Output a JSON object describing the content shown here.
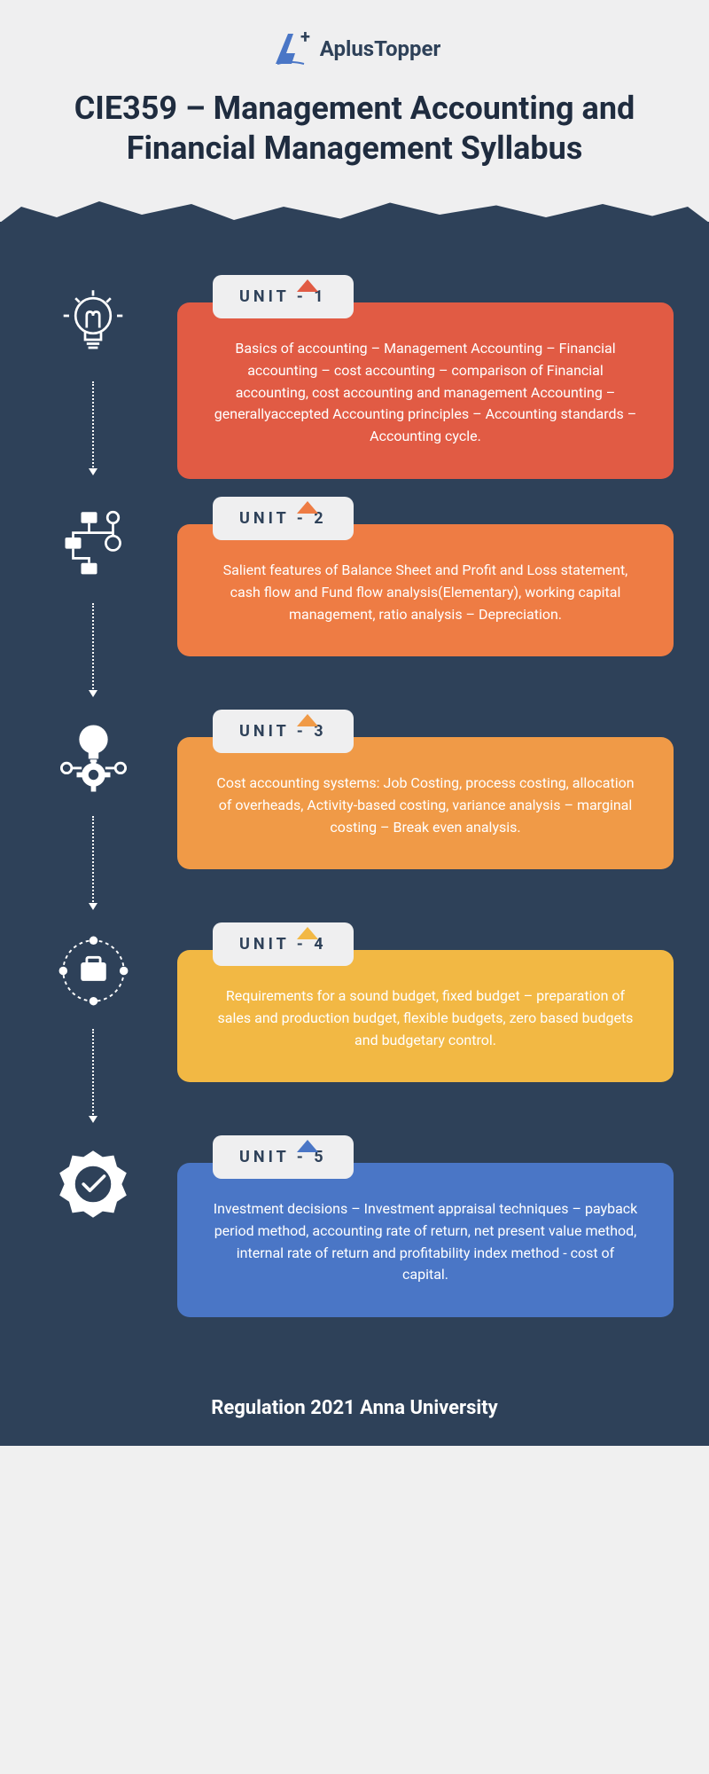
{
  "logo": {
    "text_a": "A",
    "text_plus": "plus",
    "text_topper": "Topper",
    "plus_symbol": "+"
  },
  "title": "CIE359 – Management Accounting and Financial Management Syllabus",
  "colors": {
    "bg": "#2e4159",
    "header_bg": "#efeff0",
    "label_bg": "#efeff0",
    "label_text": "#2e4159",
    "text": "#ffffff"
  },
  "units": [
    {
      "label": "UNIT - 1",
      "color": "#e15b44",
      "icon": "lightbulb",
      "content": "Basics of accounting – Management Accounting – Financial accounting – cost accounting – comparison of Financial accounting, cost accounting and management Accounting – generallyaccepted Accounting principles – Accounting standards – Accounting cycle."
    },
    {
      "label": "UNIT - 2",
      "color": "#ee7c44",
      "icon": "flowchart",
      "content": "Salient features of Balance Sheet and Profit and Loss statement, cash flow and Fund flow analysis(Elementary), working capital management, ratio analysis – Depreciation."
    },
    {
      "label": "UNIT - 3",
      "color": "#f09a47",
      "icon": "bulb-gear",
      "content": "Cost accounting systems: Job Costing, process costing, allocation of overheads, Activity-based costing, variance analysis – marginal costing – Break even analysis."
    },
    {
      "label": "UNIT - 4",
      "color": "#f2b844",
      "icon": "briefcase-orbit",
      "content": "Requirements for a sound budget, fixed budget – preparation of sales and production budget, flexible budgets, zero based budgets and budgetary control."
    },
    {
      "label": "UNIT - 5",
      "color": "#4a76c6",
      "icon": "check-badge",
      "content": "Investment decisions – Investment appraisal techniques – payback period method, accounting rate of return, net present value method, internal rate of return and profitability index method - cost of capital."
    }
  ],
  "footer": "Regulation 2021 Anna University"
}
